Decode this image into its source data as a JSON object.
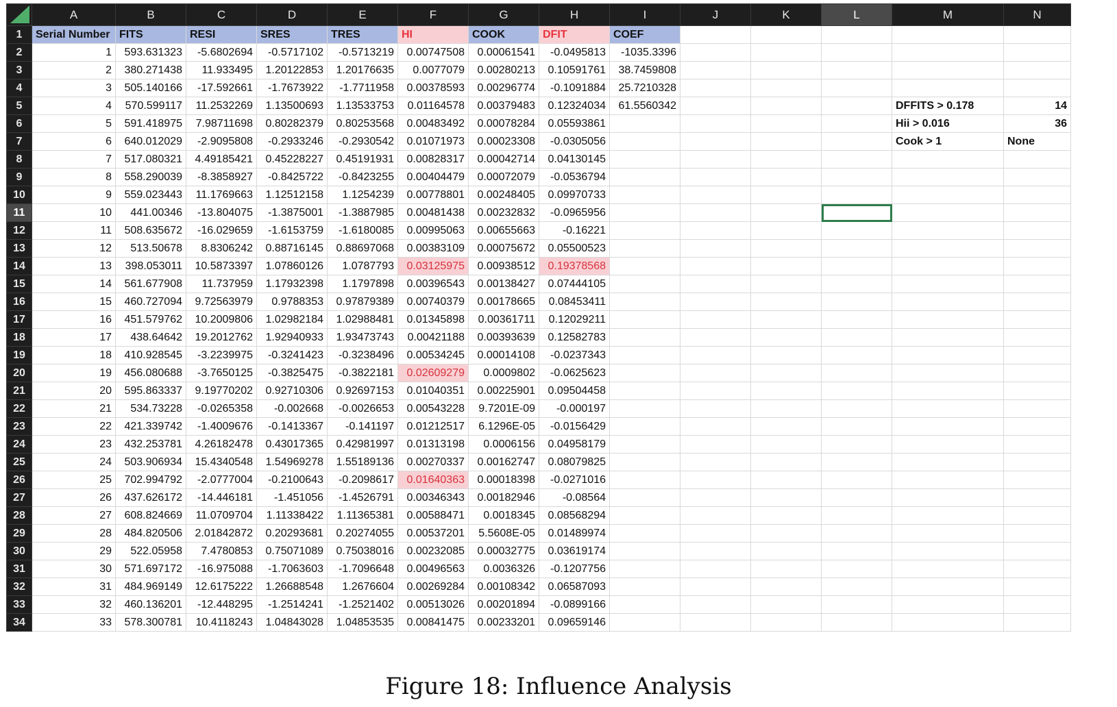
{
  "columns": [
    "A",
    "B",
    "C",
    "D",
    "E",
    "F",
    "G",
    "H",
    "I",
    "J",
    "K",
    "L",
    "M",
    "N"
  ],
  "selected_column": "L",
  "selected_row": "11",
  "header_row": {
    "row_label": "1",
    "cells": [
      "Serial Number",
      "FITS",
      "RESI",
      "SRES",
      "TRES",
      "HI",
      "COOK",
      "DFIT",
      "COEF",
      "",
      "",
      "",
      "",
      ""
    ]
  },
  "rows": [
    {
      "label": "2",
      "cells": [
        "1",
        "593.631323",
        "-5.6802694",
        "-0.5717102",
        "-0.5713219",
        "0.00747508",
        "0.00061541",
        "-0.0495813",
        "-1035.3396",
        "",
        "",
        "",
        "",
        ""
      ]
    },
    {
      "label": "3",
      "cells": [
        "2",
        "380.271438",
        "11.933495",
        "1.20122853",
        "1.20176635",
        "0.0077079",
        "0.00280213",
        "0.10591761",
        "38.7459808",
        "",
        "",
        "",
        "",
        ""
      ]
    },
    {
      "label": "4",
      "cells": [
        "3",
        "505.140166",
        "-17.592661",
        "-1.7673922",
        "-1.7711958",
        "0.00378593",
        "0.00296774",
        "-0.1091884",
        "25.7210328",
        "",
        "",
        "",
        "",
        ""
      ]
    },
    {
      "label": "5",
      "cells": [
        "4",
        "570.599117",
        "11.2532269",
        "1.13500693",
        "1.13533753",
        "0.01164578",
        "0.00379483",
        "0.12324034",
        "61.5560342",
        "",
        "",
        "",
        "DFFITS > 0.178",
        "14"
      ]
    },
    {
      "label": "6",
      "cells": [
        "5",
        "591.418975",
        "7.98711698",
        "0.80282379",
        "0.80253568",
        "0.00483492",
        "0.00078284",
        "0.05593861",
        "",
        "",
        "",
        "",
        "Hii > 0.016",
        "36"
      ]
    },
    {
      "label": "7",
      "cells": [
        "6",
        "640.012029",
        "-2.9095808",
        "-0.2933246",
        "-0.2930542",
        "0.01071973",
        "0.00023308",
        "-0.0305056",
        "",
        "",
        "",
        "",
        "Cook > 1",
        "None"
      ]
    },
    {
      "label": "8",
      "cells": [
        "7",
        "517.080321",
        "4.49185421",
        "0.45228227",
        "0.45191931",
        "0.00828317",
        "0.00042714",
        "0.04130145",
        "",
        "",
        "",
        "",
        "",
        ""
      ]
    },
    {
      "label": "9",
      "cells": [
        "8",
        "558.290039",
        "-8.3858927",
        "-0.8425722",
        "-0.8423255",
        "0.00404479",
        "0.00072079",
        "-0.0536794",
        "",
        "",
        "",
        "",
        "",
        ""
      ]
    },
    {
      "label": "10",
      "cells": [
        "9",
        "559.023443",
        "11.1769663",
        "1.12512158",
        "1.1254239",
        "0.00778801",
        "0.00248405",
        "0.09970733",
        "",
        "",
        "",
        "",
        "",
        ""
      ]
    },
    {
      "label": "11",
      "cells": [
        "10",
        "441.00346",
        "-13.804075",
        "-1.3875001",
        "-1.3887985",
        "0.00481438",
        "0.00232832",
        "-0.0965956",
        "",
        "",
        "",
        "",
        "",
        ""
      ]
    },
    {
      "label": "12",
      "cells": [
        "11",
        "508.635672",
        "-16.029659",
        "-1.6153759",
        "-1.6180085",
        "0.00995063",
        "0.00655663",
        "-0.16221",
        "",
        "",
        "",
        "",
        "",
        ""
      ]
    },
    {
      "label": "13",
      "cells": [
        "12",
        "513.50678",
        "8.8306242",
        "0.88716145",
        "0.88697068",
        "0.00383109",
        "0.00075672",
        "0.05500523",
        "",
        "",
        "",
        "",
        "",
        ""
      ]
    },
    {
      "label": "14",
      "cells": [
        "13",
        "398.053011",
        "10.5873397",
        "1.07860126",
        "1.0787793",
        "0.03125975",
        "0.00938512",
        "0.19378568",
        "",
        "",
        "",
        "",
        "",
        ""
      ]
    },
    {
      "label": "15",
      "cells": [
        "14",
        "561.677908",
        "11.737959",
        "1.17932398",
        "1.1797898",
        "0.00396543",
        "0.00138427",
        "0.07444105",
        "",
        "",
        "",
        "",
        "",
        ""
      ]
    },
    {
      "label": "16",
      "cells": [
        "15",
        "460.727094",
        "9.72563979",
        "0.9788353",
        "0.97879389",
        "0.00740379",
        "0.00178665",
        "0.08453411",
        "",
        "",
        "",
        "",
        "",
        ""
      ]
    },
    {
      "label": "17",
      "cells": [
        "16",
        "451.579762",
        "10.2009806",
        "1.02982184",
        "1.02988481",
        "0.01345898",
        "0.00361711",
        "0.12029211",
        "",
        "",
        "",
        "",
        "",
        ""
      ]
    },
    {
      "label": "18",
      "cells": [
        "17",
        "438.64642",
        "19.2012762",
        "1.92940933",
        "1.93473743",
        "0.00421188",
        "0.00393639",
        "0.12582783",
        "",
        "",
        "",
        "",
        "",
        ""
      ]
    },
    {
      "label": "19",
      "cells": [
        "18",
        "410.928545",
        "-3.2239975",
        "-0.3241423",
        "-0.3238496",
        "0.00534245",
        "0.00014108",
        "-0.0237343",
        "",
        "",
        "",
        "",
        "",
        ""
      ]
    },
    {
      "label": "20",
      "cells": [
        "19",
        "456.080688",
        "-3.7650125",
        "-0.3825475",
        "-0.3822181",
        "0.02609279",
        "0.0009802",
        "-0.0625623",
        "",
        "",
        "",
        "",
        "",
        ""
      ]
    },
    {
      "label": "21",
      "cells": [
        "20",
        "595.863337",
        "9.19770202",
        "0.92710306",
        "0.92697153",
        "0.01040351",
        "0.00225901",
        "0.09504458",
        "",
        "",
        "",
        "",
        "",
        ""
      ]
    },
    {
      "label": "22",
      "cells": [
        "21",
        "534.73228",
        "-0.0265358",
        "-0.002668",
        "-0.0026653",
        "0.00543228",
        "9.7201E-09",
        "-0.000197",
        "",
        "",
        "",
        "",
        "",
        ""
      ]
    },
    {
      "label": "23",
      "cells": [
        "22",
        "421.339742",
        "-1.4009676",
        "-0.1413367",
        "-0.141197",
        "0.01212517",
        "6.1296E-05",
        "-0.0156429",
        "",
        "",
        "",
        "",
        "",
        ""
      ]
    },
    {
      "label": "24",
      "cells": [
        "23",
        "432.253781",
        "4.26182478",
        "0.43017365",
        "0.42981997",
        "0.01313198",
        "0.0006156",
        "0.04958179",
        "",
        "",
        "",
        "",
        "",
        ""
      ]
    },
    {
      "label": "25",
      "cells": [
        "24",
        "503.906934",
        "15.4340548",
        "1.54969278",
        "1.55189136",
        "0.00270337",
        "0.00162747",
        "0.08079825",
        "",
        "",
        "",
        "",
        "",
        ""
      ]
    },
    {
      "label": "26",
      "cells": [
        "25",
        "702.994792",
        "-2.0777004",
        "-0.2100643",
        "-0.2098617",
        "0.01640363",
        "0.00018398",
        "-0.0271016",
        "",
        "",
        "",
        "",
        "",
        ""
      ]
    },
    {
      "label": "27",
      "cells": [
        "26",
        "437.626172",
        "-14.446181",
        "-1.451056",
        "-1.4526791",
        "0.00346343",
        "0.00182946",
        "-0.08564",
        "",
        "",
        "",
        "",
        "",
        ""
      ]
    },
    {
      "label": "28",
      "cells": [
        "27",
        "608.824669",
        "11.0709704",
        "1.11338422",
        "1.11365381",
        "0.00588471",
        "0.0018345",
        "0.08568294",
        "",
        "",
        "",
        "",
        "",
        ""
      ]
    },
    {
      "label": "29",
      "cells": [
        "28",
        "484.820506",
        "2.01842872",
        "0.20293681",
        "0.20274055",
        "0.00537201",
        "5.5608E-05",
        "0.01489974",
        "",
        "",
        "",
        "",
        "",
        ""
      ]
    },
    {
      "label": "30",
      "cells": [
        "29",
        "522.05958",
        "7.4780853",
        "0.75071089",
        "0.75038016",
        "0.00232085",
        "0.00032775",
        "0.03619174",
        "",
        "",
        "",
        "",
        "",
        ""
      ]
    },
    {
      "label": "31",
      "cells": [
        "30",
        "571.697172",
        "-16.975088",
        "-1.7063603",
        "-1.7096648",
        "0.00496563",
        "0.0036326",
        "-0.1207756",
        "",
        "",
        "",
        "",
        "",
        ""
      ]
    },
    {
      "label": "32",
      "cells": [
        "31",
        "484.969149",
        "12.6175222",
        "1.26688548",
        "1.2676604",
        "0.00269284",
        "0.00108342",
        "0.06587093",
        "",
        "",
        "",
        "",
        "",
        ""
      ]
    },
    {
      "label": "33",
      "cells": [
        "32",
        "460.136201",
        "-12.448295",
        "-1.2514241",
        "-1.2521402",
        "0.00513026",
        "0.00201894",
        "-0.0899166",
        "",
        "",
        "",
        "",
        "",
        ""
      ]
    },
    {
      "label": "34",
      "cells": [
        "33",
        "578.300781",
        "10.4118243",
        "1.04843028",
        "1.04853535",
        "0.00841475",
        "0.00233201",
        "0.09659146",
        "",
        "",
        "",
        "",
        "",
        ""
      ]
    }
  ],
  "highlighted_cells": [
    {
      "row": "14",
      "col": "F"
    },
    {
      "row": "14",
      "col": "H"
    },
    {
      "row": "20",
      "col": "F"
    },
    {
      "row": "26",
      "col": "F"
    }
  ],
  "blue_header_columns": [
    "A",
    "B",
    "C",
    "D",
    "E",
    "G",
    "I"
  ],
  "pink_header_columns": [
    "F",
    "H"
  ],
  "bold_text_columns": [
    "M",
    "N"
  ],
  "colors": {
    "header_blue": "#a8b8e0",
    "header_pink": "#f8d0d4",
    "pink_text": "#e8333d",
    "selection_green": "#2e7d4a",
    "row_header_bg": "#1e1e1e"
  },
  "caption": "Figure 18: Influence Analysis"
}
